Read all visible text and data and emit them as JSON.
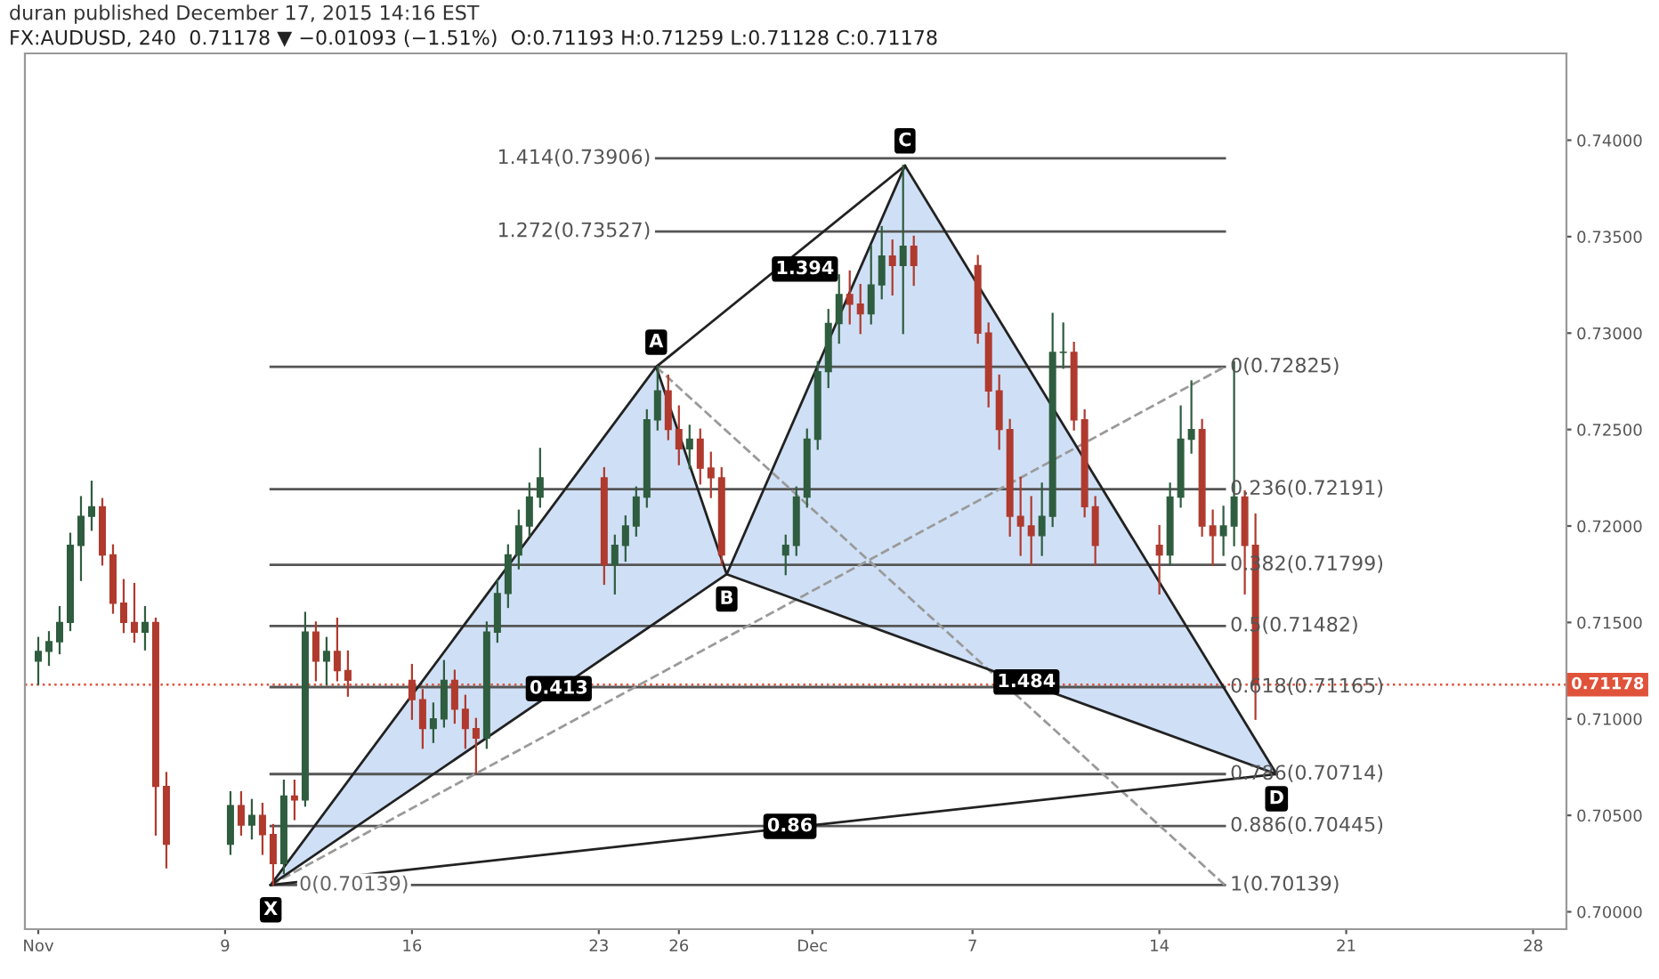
{
  "chart_data": {
    "type": "candlestick",
    "title": "FX:AUDUSD, 240  0.71178 ▼ −0.01093 (−1.51%)  O:0.71193 H:0.71259 L:0.71128 C:0.71178",
    "subtitle": "duran published December 17, 2015 14:16 EST",
    "x": [
      "2015-11-02T00:00",
      "2015-11-02T09:36",
      "2015-11-02T19:12",
      "2015-11-03T04:48",
      "2015-11-03T14:24",
      "2015-11-04T00:00",
      "2015-11-04T09:36",
      "2015-11-04T19:12",
      "2015-11-05T04:48",
      "2015-11-05T14:24",
      "2015-11-06T00:00",
      "2015-11-06T09:36",
      "2015-11-06T19:12",
      "2015-11-09T04:48",
      "2015-11-09T14:24",
      "2015-11-10T00:00",
      "2015-11-10T09:36",
      "2015-11-10T19:12",
      "2015-11-11T04:48",
      "2015-11-11T14:24",
      "2015-11-12T00:00",
      "2015-11-12T09:36",
      "2015-11-12T19:12",
      "2015-11-13T04:48",
      "2015-11-13T14:24",
      "2015-11-16T00:00",
      "2015-11-16T09:36",
      "2015-11-16T19:12",
      "2015-11-17T04:48",
      "2015-11-17T14:24",
      "2015-11-18T00:00",
      "2015-11-18T09:36",
      "2015-11-18T19:12",
      "2015-11-19T04:48",
      "2015-11-19T14:24",
      "2015-11-20T00:00",
      "2015-11-20T09:36",
      "2015-11-20T19:12",
      "2015-11-23T04:48",
      "2015-11-23T14:24",
      "2015-11-24T00:00",
      "2015-11-24T09:36",
      "2015-11-24T19:12",
      "2015-11-25T04:48",
      "2015-11-25T14:24",
      "2015-11-26T00:00",
      "2015-11-26T09:36",
      "2015-11-26T19:12",
      "2015-11-27T04:48",
      "2015-11-27T14:24",
      "2015-11-30T00:00",
      "2015-11-30T09:36",
      "2015-11-30T19:12",
      "2015-12-01T04:48",
      "2015-12-01T14:24",
      "2015-12-02T00:00",
      "2015-12-02T09:36",
      "2015-12-02T19:12",
      "2015-12-03T04:48",
      "2015-12-03T14:24",
      "2015-12-04T00:00",
      "2015-12-04T09:36",
      "2015-12-04T19:12",
      "2015-12-07T04:48",
      "2015-12-07T14:24",
      "2015-12-08T00:00",
      "2015-12-08T09:36",
      "2015-12-08T19:12",
      "2015-12-09T04:48",
      "2015-12-09T14:24",
      "2015-12-10T00:00",
      "2015-12-10T09:36",
      "2015-12-10T19:12",
      "2015-12-11T04:48",
      "2015-12-11T14:24",
      "2015-12-14T00:00",
      "2015-12-14T09:36",
      "2015-12-14T19:12",
      "2015-12-15T04:48",
      "2015-12-15T14:24",
      "2015-12-16T00:00",
      "2015-12-16T09:36",
      "2015-12-16T19:12",
      "2015-12-17T04:48",
      "2015-12-17T14:24"
    ],
    "ohlc": [
      [
        0.713,
        0.7142,
        0.7118,
        0.7135
      ],
      [
        0.7135,
        0.7145,
        0.7128,
        0.714
      ],
      [
        0.714,
        0.7158,
        0.7134,
        0.715
      ],
      [
        0.715,
        0.7196,
        0.7146,
        0.719
      ],
      [
        0.719,
        0.7215,
        0.7172,
        0.7205
      ],
      [
        0.7205,
        0.7223,
        0.7198,
        0.721
      ],
      [
        0.721,
        0.7214,
        0.718,
        0.7185
      ],
      [
        0.7185,
        0.719,
        0.7155,
        0.716
      ],
      [
        0.716,
        0.7172,
        0.7145,
        0.715
      ],
      [
        0.715,
        0.717,
        0.714,
        0.7145
      ],
      [
        0.7145,
        0.7158,
        0.7136,
        0.715
      ],
      [
        0.715,
        0.7152,
        0.704,
        0.7065
      ],
      [
        0.7065,
        0.7072,
        0.7023,
        0.7035
      ],
      [
        0.7035,
        0.7062,
        0.703,
        0.7055
      ],
      [
        0.7055,
        0.7062,
        0.704,
        0.7045
      ],
      [
        0.7045,
        0.7058,
        0.7038,
        0.705
      ],
      [
        0.705,
        0.7056,
        0.703,
        0.704
      ],
      [
        0.704,
        0.7045,
        0.70139,
        0.7025
      ],
      [
        0.7025,
        0.7068,
        0.702,
        0.706
      ],
      [
        0.706,
        0.7068,
        0.7048,
        0.7058
      ],
      [
        0.7058,
        0.7155,
        0.7055,
        0.7145
      ],
      [
        0.7145,
        0.715,
        0.712,
        0.713
      ],
      [
        0.713,
        0.7142,
        0.7118,
        0.7135
      ],
      [
        0.7135,
        0.7152,
        0.712,
        0.7125
      ],
      [
        0.7125,
        0.7135,
        0.7112,
        0.712
      ],
      [
        0.712,
        0.7128,
        0.71,
        0.711
      ],
      [
        0.711,
        0.7115,
        0.7085,
        0.7095
      ],
      [
        0.7095,
        0.7108,
        0.7088,
        0.71
      ],
      [
        0.71,
        0.713,
        0.7096,
        0.712
      ],
      [
        0.712,
        0.7125,
        0.7098,
        0.7105
      ],
      [
        0.7105,
        0.7112,
        0.7085,
        0.7095
      ],
      [
        0.7095,
        0.71,
        0.7072,
        0.709
      ],
      [
        0.709,
        0.715,
        0.7085,
        0.7145
      ],
      [
        0.7145,
        0.7172,
        0.714,
        0.7165
      ],
      [
        0.7165,
        0.719,
        0.7158,
        0.7185
      ],
      [
        0.7185,
        0.7208,
        0.7178,
        0.72
      ],
      [
        0.72,
        0.7222,
        0.7195,
        0.7215
      ],
      [
        0.7215,
        0.724,
        0.721,
        0.7225
      ],
      [
        0.7225,
        0.723,
        0.717,
        0.718
      ],
      [
        0.718,
        0.7195,
        0.7165,
        0.719
      ],
      [
        0.719,
        0.7205,
        0.7182,
        0.72
      ],
      [
        0.72,
        0.722,
        0.7195,
        0.7215
      ],
      [
        0.7215,
        0.726,
        0.721,
        0.7255
      ],
      [
        0.7255,
        0.72825,
        0.725,
        0.727
      ],
      [
        0.727,
        0.7278,
        0.7245,
        0.725
      ],
      [
        0.725,
        0.7262,
        0.7232,
        0.724
      ],
      [
        0.724,
        0.7252,
        0.723,
        0.7245
      ],
      [
        0.7245,
        0.725,
        0.7222,
        0.723
      ],
      [
        0.723,
        0.7238,
        0.7215,
        0.7225
      ],
      [
        0.7225,
        0.723,
        0.718,
        0.7185
      ],
      [
        0.7185,
        0.7195,
        0.7175,
        0.719
      ],
      [
        0.719,
        0.722,
        0.7185,
        0.7215
      ],
      [
        0.7215,
        0.725,
        0.721,
        0.7245
      ],
      [
        0.7245,
        0.7285,
        0.724,
        0.728
      ],
      [
        0.728,
        0.7312,
        0.7272,
        0.7305
      ],
      [
        0.7305,
        0.733,
        0.7295,
        0.732
      ],
      [
        0.732,
        0.7332,
        0.7305,
        0.7315
      ],
      [
        0.7315,
        0.7325,
        0.73,
        0.731
      ],
      [
        0.731,
        0.7345,
        0.7305,
        0.7325
      ],
      [
        0.7325,
        0.7355,
        0.7318,
        0.734
      ],
      [
        0.734,
        0.7348,
        0.732,
        0.7335
      ],
      [
        0.7335,
        0.73868,
        0.73,
        0.7345
      ],
      [
        0.7345,
        0.735,
        0.7325,
        0.7335
      ],
      [
        0.7335,
        0.734,
        0.7295,
        0.73
      ],
      [
        0.73,
        0.7305,
        0.7262,
        0.727
      ],
      [
        0.727,
        0.7278,
        0.724,
        0.725
      ],
      [
        0.725,
        0.7255,
        0.7195,
        0.7205
      ],
      [
        0.7205,
        0.7225,
        0.7185,
        0.72
      ],
      [
        0.72,
        0.7215,
        0.718,
        0.7195
      ],
      [
        0.7195,
        0.7222,
        0.7185,
        0.7205
      ],
      [
        0.7205,
        0.731,
        0.72,
        0.729
      ],
      [
        0.729,
        0.7305,
        0.7282,
        0.729
      ],
      [
        0.729,
        0.7295,
        0.725,
        0.7255
      ],
      [
        0.7255,
        0.726,
        0.7205,
        0.721
      ],
      [
        0.721,
        0.7215,
        0.718,
        0.719
      ],
      [
        0.719,
        0.72,
        0.7165,
        0.7185
      ],
      [
        0.7185,
        0.7222,
        0.718,
        0.7215
      ],
      [
        0.7215,
        0.7262,
        0.721,
        0.7245
      ],
      [
        0.7245,
        0.7275,
        0.7238,
        0.725
      ],
      [
        0.725,
        0.7255,
        0.7195,
        0.72
      ],
      [
        0.72,
        0.7208,
        0.718,
        0.7195
      ],
      [
        0.7195,
        0.721,
        0.7185,
        0.72
      ],
      [
        0.72,
        0.7285,
        0.719,
        0.7215
      ],
      [
        0.7215,
        0.7218,
        0.7165,
        0.719
      ],
      [
        0.719,
        0.7206,
        0.71,
        0.71178
      ]
    ],
    "series": [
      {
        "type": "area",
        "color": "#cfe0f6",
        "x": [
          "2015-11-10T17:00",
          "2015-11-25T03:36",
          "2015-11-27T19:00"
        ],
        "values": [
          0.70139,
          0.72825,
          0.7175
        ]
      },
      {
        "type": "area",
        "color": "#cfe0f6",
        "x": [
          "2015-11-27T19:00",
          "2015-12-04T11:17",
          "2015-12-18T09:22"
        ],
        "values": [
          0.7175,
          0.73868,
          0.70714
        ]
      },
      {
        "type": "line",
        "color": "#555555",
        "name": "1.414(0.73906)",
        "x": [
          "2015-11-25T03:36",
          "2015-12-16T10:48"
        ],
        "values": [
          0.73906,
          0.73906
        ]
      },
      {
        "type": "line",
        "color": "#555555",
        "name": "1.272(0.73527)",
        "x": [
          "2015-11-25T03:36",
          "2015-12-16T10:48"
        ],
        "values": [
          0.73527,
          0.73527
        ]
      },
      {
        "type": "line",
        "color": "#555555",
        "name": "0(0.72825)",
        "x": [
          "2015-12-16T10:48",
          "2015-11-10T17:00"
        ],
        "values": [
          0.72825,
          0.72825
        ]
      },
      {
        "type": "line",
        "color": "#555555",
        "name": "0.236(0.72191)",
        "x": [
          "2015-12-16T10:48",
          "2015-11-10T17:00"
        ],
        "values": [
          0.72191,
          0.72191
        ]
      },
      {
        "type": "line",
        "color": "#555555",
        "name": "0.382(0.71799)",
        "x": [
          "2015-12-16T10:48",
          "2015-11-10T17:00"
        ],
        "values": [
          0.71799,
          0.71799
        ]
      },
      {
        "type": "line",
        "color": "#555555",
        "name": "0.5(0.71482)",
        "x": [
          "2015-12-16T10:48",
          "2015-11-10T17:00"
        ],
        "values": [
          0.71482,
          0.71482
        ]
      },
      {
        "type": "line",
        "color": "#555555",
        "name": "0.618(0.71165)",
        "x": [
          "2015-12-16T10:48",
          "2015-11-10T17:00"
        ],
        "values": [
          0.71165,
          0.71165
        ]
      },
      {
        "type": "line",
        "color": "#555555",
        "name": "0.786(0.70714)",
        "x": [
          "2015-12-16T10:48",
          "2015-11-10T17:00"
        ],
        "values": [
          0.70714,
          0.70714
        ]
      },
      {
        "type": "line",
        "color": "#555555",
        "name": "0.886(0.70445)",
        "x": [
          "2015-12-16T10:48",
          "2015-11-10T17:00"
        ],
        "values": [
          0.70445,
          0.70445
        ]
      },
      {
        "type": "line",
        "color": "#555555",
        "name": "1(0.70139)",
        "x": [
          "2015-12-16T10:48",
          "2015-11-10T17:00"
        ],
        "values": [
          0.70139,
          0.70139
        ]
      },
      {
        "type": "line",
        "color": "#9a9a9a",
        "line_style": "dashed",
        "x": [
          "2015-11-10T17:00",
          "2015-12-16T10:48"
        ],
        "values": [
          0.70139,
          0.72825
        ]
      },
      {
        "type": "line",
        "color": "#9a9a9a",
        "line_style": "dashed",
        "x": [
          "2015-11-25T03:36",
          "2015-12-16T10:48"
        ],
        "values": [
          0.72825,
          0.70139
        ]
      },
      {
        "type": "line",
        "color": "#222222",
        "x": [
          "2015-11-10T17:00",
          "2015-11-25T03:36",
          "2015-11-27T19:00",
          "2015-12-04T11:17",
          "2015-12-18T09:22"
        ],
        "values": [
          0.70139,
          0.72825,
          0.7175,
          0.73868,
          0.70714
        ]
      },
      {
        "type": "line",
        "color": "#222222",
        "x": [
          "2015-11-10T17:00",
          "2015-11-27T19:00",
          "2015-12-18T09:22"
        ],
        "values": [
          0.70139,
          0.7175,
          0.70714
        ]
      },
      {
        "type": "line",
        "color": "#222222",
        "x": [
          "2015-11-10T17:00",
          "2015-12-18T09:22"
        ],
        "values": [
          0.70139,
          0.70714
        ]
      },
      {
        "type": "line",
        "color": "#222222",
        "x": [
          "2015-11-25T03:36",
          "2015-12-04T11:17"
        ],
        "values": [
          0.72825,
          0.73868
        ]
      }
    ],
    "annotations": [
      {
        "text": "X",
        "x": "2015-11-10T17:00",
        "y": 0.70139
      },
      {
        "text": "A",
        "x": "2015-11-25T03:36",
        "y": 0.72825
      },
      {
        "text": "B",
        "x": "2015-11-27T19:00",
        "y": 0.7175
      },
      {
        "text": "C",
        "x": "2015-12-04T11:17",
        "y": 0.73868
      },
      {
        "text": "D",
        "x": "2015-12-18T09:22",
        "y": 0.70714
      },
      {
        "text": "0.413",
        "x": "2015-11-21T12:00",
        "y": 0.71157
      },
      {
        "text": "1.394",
        "x": "2015-11-30T17:17",
        "y": 0.73332
      },
      {
        "text": "0.86",
        "x": "2015-11-30T03:50",
        "y": 0.70443
      },
      {
        "text": "1.484",
        "x": "2015-12-09T00:29",
        "y": 0.71191
      },
      {
        "text": "0(0.70139)",
        "x": "2015-11-13T19:55",
        "y": 0.70139
      }
    ],
    "ref_lines": [
      {
        "axis": "y",
        "value": 0.71178,
        "label": "0.71178",
        "color": "#e0533b",
        "line_style": "dotted"
      }
    ],
    "xlim": [
      "2015-11-01T12:00",
      "2015-12-29T06:00"
    ],
    "xticks": [
      {
        "value": "2015-11-02",
        "label": "Nov"
      },
      {
        "value": "2015-11-09",
        "label": "9"
      },
      {
        "value": "2015-11-16",
        "label": "16"
      },
      {
        "value": "2015-11-23",
        "label": "23"
      },
      {
        "value": "2015-11-26",
        "label": "26"
      },
      {
        "value": "2015-12-01",
        "label": "Dec"
      },
      {
        "value": "2015-12-07",
        "label": "7"
      },
      {
        "value": "2015-12-14",
        "label": "14"
      },
      {
        "value": "2015-12-21",
        "label": "21"
      },
      {
        "value": "2015-12-28",
        "label": "28"
      }
    ],
    "ylim": [
      0.6991,
      0.7445
    ],
    "yticks": [
      {
        "value": 0.7,
        "label": "0.70000"
      },
      {
        "value": 0.705,
        "label": "0.70500"
      },
      {
        "value": 0.71,
        "label": "0.71000"
      },
      {
        "value": 0.715,
        "label": "0.71500"
      },
      {
        "value": 0.72,
        "label": "0.72000"
      },
      {
        "value": 0.725,
        "label": "0.72500"
      },
      {
        "value": 0.73,
        "label": "0.73000"
      },
      {
        "value": 0.735,
        "label": "0.73500"
      },
      {
        "value": 0.74,
        "label": "0.74000"
      }
    ],
    "grid": false,
    "legend": false
  }
}
